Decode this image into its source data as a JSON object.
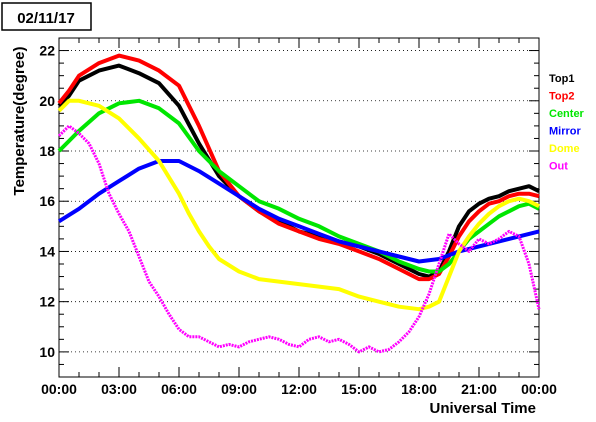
{
  "date_label": "02/11/17",
  "colors": {
    "Top1": "#000000",
    "Top2": "#ff0000",
    "Center": "#00e600",
    "Mirror": "#0000ff",
    "Dome": "#ffff00",
    "Out": "#ff00ff"
  },
  "chart_data": {
    "type": "line",
    "title": "",
    "xlabel": "Universal Time",
    "ylabel": "Temperature(degree)",
    "xlim": [
      0,
      24
    ],
    "ylim": [
      9,
      22.5
    ],
    "xticks": [
      "00:00",
      "03:00",
      "06:00",
      "09:00",
      "12:00",
      "15:00",
      "18:00",
      "21:00",
      "00:00"
    ],
    "yticks": [
      10,
      12,
      14,
      16,
      18,
      20,
      22
    ],
    "grid": "horizontal dotted",
    "legend": "right",
    "series": [
      {
        "name": "Top1",
        "color": "#000000",
        "x": [
          0,
          0.5,
          1,
          2,
          3,
          4,
          5,
          6,
          7,
          8,
          9,
          10,
          11,
          12,
          13,
          14,
          15,
          16,
          17,
          18,
          18.5,
          19,
          19.5,
          20,
          20.5,
          21,
          21.5,
          22,
          22.5,
          23,
          23.5,
          24
        ],
        "y": [
          19.8,
          20.2,
          20.8,
          21.2,
          21.4,
          21.1,
          20.7,
          19.8,
          18.3,
          17.0,
          16.2,
          15.6,
          15.2,
          14.8,
          14.6,
          14.4,
          14.2,
          13.9,
          13.5,
          13.1,
          13.0,
          13.2,
          14.0,
          15.0,
          15.6,
          15.9,
          16.1,
          16.2,
          16.4,
          16.5,
          16.6,
          16.4
        ]
      },
      {
        "name": "Top2",
        "color": "#ff0000",
        "x": [
          0,
          0.5,
          1,
          2,
          3,
          4,
          5,
          6,
          7,
          8,
          9,
          10,
          11,
          12,
          13,
          14,
          15,
          16,
          17,
          18,
          18.5,
          19,
          19.5,
          20,
          20.5,
          21,
          21.5,
          22,
          22.5,
          23,
          23.5,
          24
        ],
        "y": [
          19.9,
          20.4,
          21.0,
          21.5,
          21.8,
          21.6,
          21.2,
          20.6,
          19.0,
          17.2,
          16.2,
          15.6,
          15.1,
          14.8,
          14.5,
          14.3,
          14.0,
          13.7,
          13.3,
          12.9,
          12.9,
          13.1,
          13.8,
          14.6,
          15.2,
          15.6,
          15.9,
          16.0,
          16.2,
          16.3,
          16.3,
          16.2
        ]
      },
      {
        "name": "Center",
        "color": "#00e600",
        "x": [
          0,
          0.5,
          1,
          2,
          3,
          4,
          5,
          6,
          7,
          8,
          9,
          10,
          11,
          12,
          13,
          14,
          15,
          16,
          17,
          18,
          18.5,
          19,
          19.5,
          20,
          20.5,
          21,
          21.5,
          22,
          22.5,
          23,
          23.5,
          24
        ],
        "y": [
          18.0,
          18.4,
          18.8,
          19.5,
          19.9,
          20.0,
          19.7,
          19.1,
          18.0,
          17.2,
          16.6,
          16.0,
          15.7,
          15.3,
          15.0,
          14.6,
          14.3,
          14.0,
          13.6,
          13.3,
          13.2,
          13.2,
          13.5,
          14.0,
          14.5,
          14.8,
          15.1,
          15.4,
          15.6,
          15.8,
          15.9,
          15.7
        ]
      },
      {
        "name": "Mirror",
        "color": "#0000ff",
        "x": [
          0,
          1,
          2,
          3,
          4,
          5,
          6,
          7,
          8,
          9,
          10,
          11,
          12,
          13,
          14,
          15,
          16,
          17,
          18,
          19,
          20,
          21,
          22,
          23,
          24
        ],
        "y": [
          15.2,
          15.7,
          16.3,
          16.8,
          17.3,
          17.6,
          17.6,
          17.2,
          16.7,
          16.2,
          15.7,
          15.3,
          15.0,
          14.7,
          14.4,
          14.2,
          14.0,
          13.8,
          13.6,
          13.7,
          14.0,
          14.2,
          14.4,
          14.6,
          14.8
        ]
      },
      {
        "name": "Dome",
        "color": "#ffff00",
        "x": [
          0,
          0.5,
          1,
          2,
          3,
          4,
          5,
          6,
          6.5,
          7,
          7.5,
          8,
          9,
          10,
          11,
          12,
          13,
          14,
          15,
          16,
          17,
          18,
          18.5,
          19,
          19.5,
          20,
          20.5,
          21,
          21.5,
          22,
          22.5,
          23,
          23.5,
          24
        ],
        "y": [
          19.6,
          20.0,
          20.0,
          19.8,
          19.3,
          18.5,
          17.6,
          16.3,
          15.5,
          14.8,
          14.2,
          13.7,
          13.2,
          12.9,
          12.8,
          12.7,
          12.6,
          12.5,
          12.2,
          12.0,
          11.8,
          11.7,
          11.8,
          12.0,
          13.0,
          14.0,
          14.6,
          15.1,
          15.5,
          15.8,
          16.0,
          16.1,
          16.0,
          15.8
        ]
      },
      {
        "name": "Out",
        "color": "#ff00ff",
        "x": [
          0,
          0.5,
          1,
          1.5,
          2,
          2.5,
          3,
          3.5,
          4,
          4.5,
          5,
          5.5,
          6,
          6.5,
          7,
          7.5,
          8,
          8.5,
          9,
          9.5,
          10,
          10.5,
          11,
          11.5,
          12,
          12.5,
          13,
          13.5,
          14,
          14.5,
          15,
          15.5,
          16,
          16.5,
          17,
          17.5,
          18,
          18.5,
          19,
          19.5,
          20,
          20.5,
          21,
          21.5,
          22,
          22.5,
          23,
          23.5,
          24
        ],
        "y": [
          18.6,
          19.0,
          18.7,
          18.3,
          17.5,
          16.3,
          15.5,
          14.8,
          13.8,
          12.8,
          12.2,
          11.5,
          10.9,
          10.6,
          10.6,
          10.4,
          10.2,
          10.3,
          10.2,
          10.4,
          10.5,
          10.6,
          10.5,
          10.3,
          10.2,
          10.5,
          10.6,
          10.4,
          10.5,
          10.3,
          10.0,
          10.2,
          10.0,
          10.1,
          10.4,
          10.8,
          11.4,
          12.3,
          13.5,
          14.7,
          14.3,
          14.0,
          14.5,
          14.3,
          14.5,
          14.8,
          14.6,
          13.5,
          11.7
        ]
      }
    ]
  }
}
